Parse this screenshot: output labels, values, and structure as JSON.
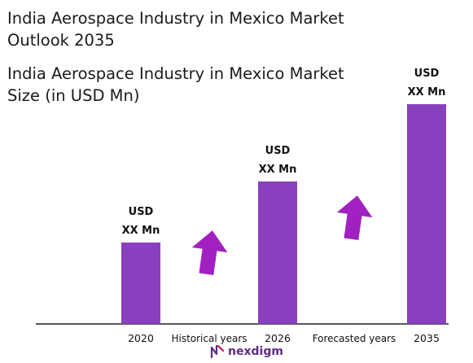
{
  "header": {
    "title": "India Aerospace Industry in Mexico Market Outlook 2035",
    "subtitle": "India Aerospace Industry in Mexico Market Size (in USD Mn)"
  },
  "chart_data": {
    "type": "bar",
    "categories": [
      "2020",
      "2026",
      "2035"
    ],
    "values": [
      1.0,
      1.75,
      2.7
    ],
    "value_labels": [
      [
        "USD",
        "XX Mn"
      ],
      [
        "USD",
        "XX Mn"
      ],
      [
        "USD",
        "XX Mn"
      ]
    ],
    "period_labels": [
      "Historical years",
      "Forecasted years"
    ],
    "ylim": [
      0,
      2.8
    ],
    "bar_color": "#8840bf",
    "arrow_color": "#a020c0",
    "grid": false
  },
  "logo": {
    "text": "nexdigm",
    "color": "#5b2d7f"
  }
}
